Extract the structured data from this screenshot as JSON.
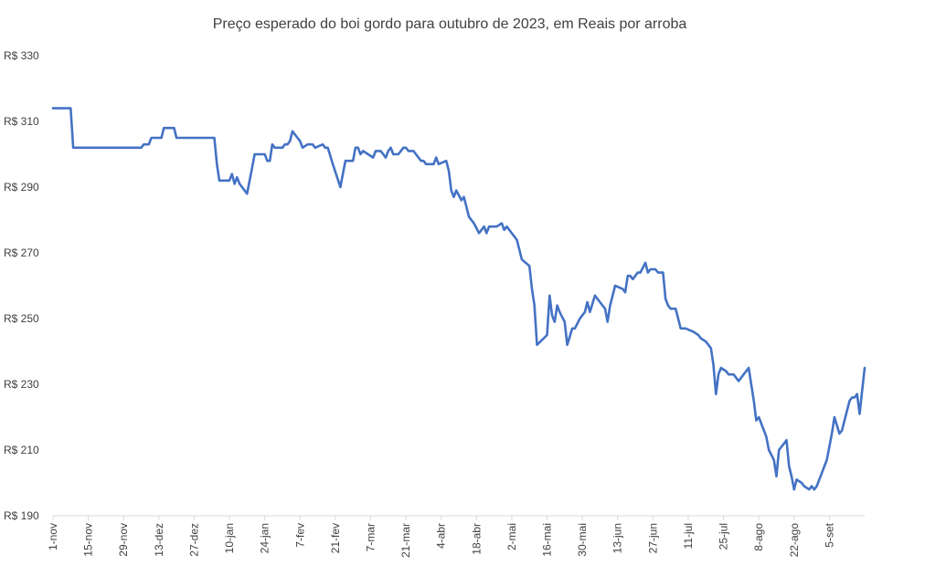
{
  "chart_data": {
    "type": "line",
    "title": "Preço esperado do boi gordo para  outubro de 2023, em Reais por arroba",
    "xlabel": "",
    "ylabel": "",
    "ylim": [
      190,
      330
    ],
    "grid": false,
    "legend": "none",
    "y_ticks": [
      "R$ 190",
      "R$ 210",
      "R$ 230",
      "R$ 250",
      "R$ 270",
      "R$ 290",
      "R$ 310",
      "R$ 330"
    ],
    "y_tick_values": [
      190,
      210,
      230,
      250,
      270,
      290,
      310,
      330
    ],
    "x_tick_labels": [
      "1-nov",
      "15-nov",
      "29-nov",
      "13-dez",
      "27-dez",
      "10-jan",
      "24-jan",
      "7-fev",
      "21-fev",
      "7-mar",
      "21-mar",
      "4-abr",
      "18-abr",
      "2-mai",
      "16-mai",
      "30-mai",
      "13-jun",
      "27-jun",
      "11-jul",
      "25-jul",
      "8-ago",
      "22-ago",
      "5-set"
    ],
    "x_tick_days": [
      0,
      14,
      28,
      42,
      56,
      70,
      84,
      98,
      112,
      126,
      140,
      154,
      168,
      182,
      196,
      210,
      224,
      238,
      252,
      266,
      280,
      294,
      308
    ],
    "x_range_days": [
      0,
      322
    ],
    "line_color": "#4472C4",
    "series": [
      {
        "name": "Preço esperado",
        "points": [
          [
            0,
            314
          ],
          [
            7,
            314
          ],
          [
            8,
            302
          ],
          [
            35,
            302
          ],
          [
            36,
            303
          ],
          [
            38,
            303
          ],
          [
            39,
            305
          ],
          [
            43,
            305
          ],
          [
            44,
            308
          ],
          [
            48,
            308
          ],
          [
            49,
            305
          ],
          [
            64,
            305
          ],
          [
            65,
            297
          ],
          [
            66,
            292
          ],
          [
            70,
            292
          ],
          [
            71,
            294
          ],
          [
            72,
            291
          ],
          [
            73,
            293
          ],
          [
            74,
            291
          ],
          [
            77,
            288
          ],
          [
            79,
            296
          ],
          [
            80,
            300
          ],
          [
            84,
            300
          ],
          [
            85,
            298
          ],
          [
            86,
            298
          ],
          [
            87,
            303
          ],
          [
            88,
            302
          ],
          [
            91,
            302
          ],
          [
            92,
            303
          ],
          [
            93,
            303
          ],
          [
            94,
            304
          ],
          [
            95,
            307
          ],
          [
            97,
            305
          ],
          [
            98,
            304
          ],
          [
            99,
            302
          ],
          [
            101,
            303
          ],
          [
            103,
            303
          ],
          [
            104,
            302
          ],
          [
            107,
            303
          ],
          [
            108,
            302
          ],
          [
            109,
            302
          ],
          [
            111,
            297
          ],
          [
            114,
            290
          ],
          [
            115,
            294
          ],
          [
            116,
            298
          ],
          [
            119,
            298
          ],
          [
            120,
            302
          ],
          [
            121,
            302
          ],
          [
            122,
            300
          ],
          [
            123,
            301
          ],
          [
            125,
            300
          ],
          [
            127,
            299
          ],
          [
            128,
            301
          ],
          [
            130,
            301
          ],
          [
            131,
            300
          ],
          [
            132,
            299
          ],
          [
            133,
            301
          ],
          [
            134,
            302
          ],
          [
            135,
            300
          ],
          [
            137,
            300
          ],
          [
            138,
            301
          ],
          [
            139,
            302
          ],
          [
            140,
            302
          ],
          [
            141,
            301
          ],
          [
            143,
            301
          ],
          [
            144,
            300
          ],
          [
            146,
            298
          ],
          [
            147,
            298
          ],
          [
            148,
            297
          ],
          [
            151,
            297
          ],
          [
            152,
            299
          ],
          [
            153,
            297
          ],
          [
            156,
            298
          ],
          [
            157,
            295
          ],
          [
            158,
            289
          ],
          [
            159,
            287
          ],
          [
            160,
            289
          ],
          [
            162,
            286
          ],
          [
            163,
            287
          ],
          [
            164,
            284
          ],
          [
            165,
            281
          ],
          [
            167,
            279
          ],
          [
            169,
            276
          ],
          [
            171,
            278
          ],
          [
            172,
            276
          ],
          [
            173,
            278
          ],
          [
            176,
            278
          ],
          [
            178,
            279
          ],
          [
            179,
            277
          ],
          [
            180,
            278
          ],
          [
            182,
            276
          ],
          [
            184,
            274
          ],
          [
            185,
            271
          ],
          [
            186,
            268
          ],
          [
            189,
            266
          ],
          [
            190,
            259
          ],
          [
            191,
            254
          ],
          [
            192,
            242
          ],
          [
            196,
            245
          ],
          [
            197,
            257
          ],
          [
            198,
            251
          ],
          [
            199,
            249
          ],
          [
            200,
            254
          ],
          [
            201,
            252
          ],
          [
            203,
            249
          ],
          [
            204,
            242
          ],
          [
            206,
            247
          ],
          [
            207,
            247
          ],
          [
            209,
            250
          ],
          [
            211,
            252
          ],
          [
            212,
            255
          ],
          [
            213,
            252
          ],
          [
            215,
            257
          ],
          [
            217,
            255
          ],
          [
            219,
            253
          ],
          [
            220,
            249
          ],
          [
            221,
            254
          ],
          [
            223,
            260
          ],
          [
            226,
            259
          ],
          [
            227,
            258
          ],
          [
            228,
            263
          ],
          [
            229,
            263
          ],
          [
            230,
            262
          ],
          [
            232,
            264
          ],
          [
            233,
            264
          ],
          [
            235,
            267
          ],
          [
            236,
            264
          ],
          [
            237,
            265
          ],
          [
            239,
            265
          ],
          [
            240,
            264
          ],
          [
            242,
            264
          ],
          [
            243,
            256
          ],
          [
            244,
            254
          ],
          [
            245,
            253
          ],
          [
            247,
            253
          ],
          [
            249,
            247
          ],
          [
            251,
            247
          ],
          [
            254,
            246
          ],
          [
            256,
            245
          ],
          [
            257,
            244
          ],
          [
            259,
            243
          ],
          [
            261,
            241
          ],
          [
            262,
            236
          ],
          [
            263,
            227
          ],
          [
            264,
            233
          ],
          [
            265,
            235
          ],
          [
            267,
            234
          ],
          [
            268,
            233
          ],
          [
            270,
            233
          ],
          [
            272,
            231
          ],
          [
            274,
            233
          ],
          [
            276,
            235
          ],
          [
            278,
            225
          ],
          [
            279,
            219
          ],
          [
            280,
            220
          ],
          [
            282,
            216
          ],
          [
            283,
            214
          ],
          [
            284,
            210
          ],
          [
            286,
            207
          ],
          [
            287,
            202
          ],
          [
            288,
            210
          ],
          [
            290,
            212
          ],
          [
            291,
            213
          ],
          [
            292,
            205
          ],
          [
            293,
            202
          ],
          [
            294,
            198
          ],
          [
            295,
            201
          ],
          [
            297,
            200
          ],
          [
            298,
            199
          ],
          [
            300,
            198
          ],
          [
            301,
            199
          ],
          [
            302,
            198
          ],
          [
            303,
            199
          ],
          [
            305,
            203
          ],
          [
            307,
            207
          ],
          [
            309,
            215
          ],
          [
            310,
            220
          ],
          [
            312,
            215
          ],
          [
            313,
            216
          ],
          [
            315,
            222
          ],
          [
            316,
            225
          ],
          [
            317,
            226
          ],
          [
            318,
            226
          ],
          [
            319,
            227
          ],
          [
            320,
            221
          ],
          [
            321,
            228
          ],
          [
            322,
            235
          ]
        ]
      }
    ]
  }
}
